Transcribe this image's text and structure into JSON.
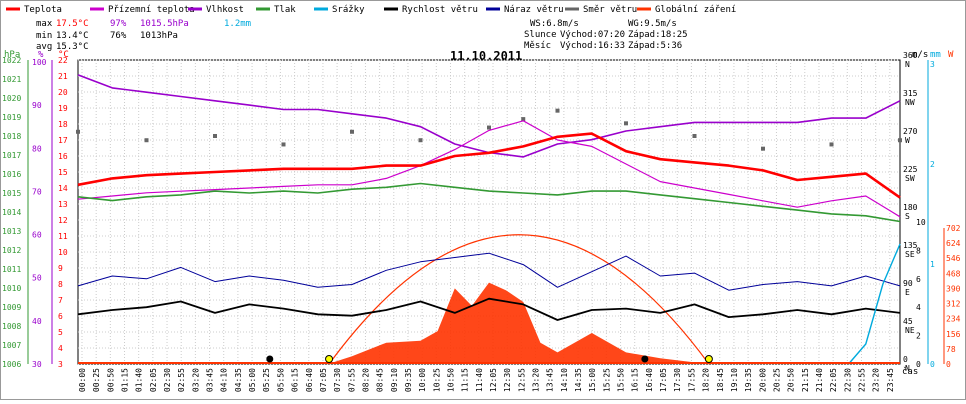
{
  "chart_data": {
    "type": "line",
    "title": "11.10.2011",
    "legend": [
      {
        "label": "Teplota",
        "color": "#ff0000"
      },
      {
        "label": "Přízemní teplota",
        "color": "#cc00cc"
      },
      {
        "label": "Vlhkost",
        "color": "#9900cc"
      },
      {
        "label": "Tlak",
        "color": "#339933"
      },
      {
        "label": "Srážky",
        "color": "#00aadd"
      },
      {
        "label": "Rychlost větru",
        "color": "#000000"
      },
      {
        "label": "Náraz větru",
        "color": "#000099"
      },
      {
        "label": "Směr větru",
        "color": "#666666"
      },
      {
        "label": "Globální záření",
        "color": "#ff3300"
      }
    ],
    "stats": {
      "max": {
        "label": "max",
        "temp": "17.5°C",
        "hum": "97%",
        "press": "1015.5hPa",
        "rain": "1.2mm"
      },
      "min": {
        "label": "min",
        "temp": "13.4°C",
        "hum": "76%",
        "press": "1013hPa"
      },
      "avg": {
        "label": "avg",
        "temp": "15.3°C"
      },
      "ws": "WS:6.8m/s",
      "wg": "WG:9.5m/s",
      "sun_label": "Slunce",
      "sunrise": "Východ:07:20",
      "sunset": "Západ:18:25",
      "moon_label": "Měsíc",
      "moonrise": "Východ:16:33",
      "moonset": "Západ:5:36"
    },
    "axes": {
      "hpa": {
        "label": "hPa",
        "min": 1006,
        "max": 1022,
        "color": "#339933"
      },
      "percent": {
        "label": "%",
        "ticks": [
          30,
          40,
          50,
          60,
          70,
          80,
          90,
          100
        ],
        "color": "#9900cc"
      },
      "celsius": {
        "label": "°C",
        "min": 3,
        "max": 22,
        "color": "#ff0000"
      },
      "ms": {
        "label": "m/s",
        "ticks": [
          0,
          2,
          4,
          6,
          8,
          10
        ],
        "color": "#000000"
      },
      "mm": {
        "label": "mm",
        "ticks": [
          0,
          1,
          2,
          3
        ],
        "color": "#00aadd"
      },
      "wm2": {
        "label": "W",
        "ticks": [
          0,
          78,
          156,
          234,
          312,
          390,
          468,
          546,
          624,
          702
        ],
        "color": "#ff3300"
      },
      "direction": [
        {
          "deg": "0",
          "dir": "N"
        },
        {
          "deg": "45",
          "dir": "NE"
        },
        {
          "deg": "90",
          "dir": "E"
        },
        {
          "deg": "135",
          "dir": "SE"
        },
        {
          "deg": "180",
          "dir": "S"
        },
        {
          "deg": "225",
          "dir": "SW"
        },
        {
          "deg": "270",
          "dir": "W"
        },
        {
          "deg": "315",
          "dir": "NW"
        },
        {
          "deg": "360",
          "dir": "N"
        }
      ],
      "xlabel": "čas",
      "x_ticks": [
        "00:00",
        "00:25",
        "00:50",
        "01:15",
        "01:40",
        "02:05",
        "02:30",
        "02:55",
        "03:20",
        "03:45",
        "04:10",
        "04:35",
        "05:00",
        "05:25",
        "05:50",
        "06:15",
        "06:40",
        "07:05",
        "07:30",
        "07:55",
        "08:20",
        "08:45",
        "09:10",
        "09:35",
        "10:00",
        "10:25",
        "10:50",
        "11:15",
        "11:40",
        "12:05",
        "12:30",
        "12:55",
        "13:20",
        "13:45",
        "14:10",
        "14:35",
        "15:00",
        "15:25",
        "15:50",
        "16:15",
        "16:40",
        "17:05",
        "17:30",
        "17:55",
        "18:20",
        "18:45",
        "19:10",
        "19:35",
        "20:00",
        "20:25",
        "20:50",
        "21:15",
        "21:40",
        "22:05",
        "22:30",
        "22:55",
        "23:20",
        "23:45"
      ]
    },
    "series": [
      {
        "name": "Teplota",
        "unit": "°C",
        "x": [
          0,
          1,
          2,
          3,
          4,
          5,
          6,
          7,
          8,
          9,
          10,
          11,
          12,
          13,
          14,
          15,
          16,
          17,
          18,
          19,
          20,
          21,
          22,
          23,
          24
        ],
        "values": [
          14.2,
          14.6,
          14.8,
          14.9,
          15.0,
          15.1,
          15.2,
          15.2,
          15.2,
          15.4,
          15.4,
          16.0,
          16.2,
          16.6,
          17.2,
          17.4,
          16.3,
          15.8,
          15.6,
          15.4,
          15.1,
          14.5,
          14.7,
          14.9,
          13.4
        ]
      },
      {
        "name": "Přízemní teplota",
        "unit": "°C",
        "x": [
          0,
          1,
          2,
          3,
          4,
          5,
          6,
          7,
          8,
          9,
          10,
          11,
          12,
          13,
          14,
          15,
          16,
          17,
          18,
          19,
          20,
          21,
          22,
          23,
          24
        ],
        "values": [
          13.3,
          13.5,
          13.7,
          13.8,
          13.9,
          14.0,
          14.1,
          14.2,
          14.2,
          14.6,
          15.4,
          16.4,
          17.6,
          18.2,
          17.0,
          16.6,
          15.5,
          14.4,
          14.0,
          13.6,
          13.2,
          12.8,
          13.2,
          13.5,
          12.2
        ]
      },
      {
        "name": "Vlhkost",
        "unit": "%",
        "x": [
          0,
          1,
          2,
          3,
          4,
          5,
          6,
          7,
          8,
          9,
          10,
          11,
          12,
          13,
          14,
          15,
          16,
          17,
          18,
          19,
          20,
          21,
          22,
          23,
          24
        ],
        "values": [
          97,
          94,
          93,
          92,
          91,
          90,
          89,
          89,
          88,
          87,
          85,
          81,
          79,
          78,
          81,
          82,
          84,
          85,
          86,
          86,
          86,
          86,
          87,
          87,
          91
        ]
      },
      {
        "name": "Tlak",
        "unit": "hPa",
        "x": [
          0,
          1,
          2,
          3,
          4,
          5,
          6,
          7,
          8,
          9,
          10,
          11,
          12,
          13,
          14,
          15,
          16,
          17,
          18,
          19,
          20,
          21,
          22,
          23,
          24
        ],
        "values": [
          1014.8,
          1014.6,
          1014.8,
          1014.9,
          1015.1,
          1015.0,
          1015.1,
          1015.0,
          1015.2,
          1015.3,
          1015.5,
          1015.3,
          1015.1,
          1015.0,
          1014.9,
          1015.1,
          1015.1,
          1014.9,
          1014.7,
          1014.5,
          1014.3,
          1014.1,
          1013.9,
          1013.8,
          1013.5
        ]
      },
      {
        "name": "Rychlost větru",
        "unit": "m/s",
        "x": [
          0,
          1,
          2,
          3,
          4,
          5,
          6,
          7,
          8,
          9,
          10,
          11,
          12,
          13,
          14,
          15,
          16,
          17,
          18,
          19,
          20,
          21,
          22,
          23,
          24
        ],
        "values": [
          3.5,
          3.8,
          4.0,
          4.4,
          3.6,
          4.2,
          3.9,
          3.5,
          3.4,
          3.8,
          4.4,
          3.6,
          4.6,
          4.2,
          3.1,
          3.8,
          3.9,
          3.6,
          4.2,
          3.3,
          3.5,
          3.8,
          3.5,
          3.9,
          3.6
        ]
      },
      {
        "name": "Náraz větru",
        "unit": "m/s",
        "x": [
          0,
          1,
          2,
          3,
          4,
          5,
          6,
          7,
          8,
          9,
          10,
          11,
          12,
          13,
          14,
          15,
          16,
          17,
          18,
          19,
          20,
          21,
          22,
          23,
          24
        ],
        "values": [
          5.5,
          6.2,
          6.0,
          6.8,
          5.8,
          6.2,
          5.9,
          5.4,
          5.6,
          6.6,
          7.2,
          7.5,
          7.8,
          7.0,
          5.4,
          6.5,
          7.6,
          6.2,
          6.4,
          5.2,
          5.6,
          5.8,
          5.5,
          6.2,
          5.5
        ]
      },
      {
        "name": "Srážky",
        "unit": "mm",
        "x": [
          22.5,
          23.0,
          23.5,
          24.0
        ],
        "values": [
          0,
          0.2,
          0.8,
          1.2
        ]
      },
      {
        "name": "Globální záření",
        "unit": "W",
        "x": [
          7.3,
          8,
          9,
          10,
          10.5,
          11,
          11.5,
          12,
          12.5,
          13,
          13.5,
          14,
          15,
          16,
          17,
          18.4
        ],
        "values": [
          0,
          40,
          110,
          120,
          170,
          390,
          300,
          420,
          380,
          320,
          110,
          60,
          160,
          60,
          30,
          0
        ]
      },
      {
        "name": "Směr větru",
        "unit": "°",
        "x": [
          0,
          2,
          4,
          6,
          8,
          10,
          12,
          13,
          14,
          16,
          18,
          20,
          22,
          24
        ],
        "values": [
          275,
          265,
          270,
          260,
          275,
          265,
          280,
          290,
          300,
          285,
          270,
          255,
          260,
          265
        ]
      }
    ]
  }
}
